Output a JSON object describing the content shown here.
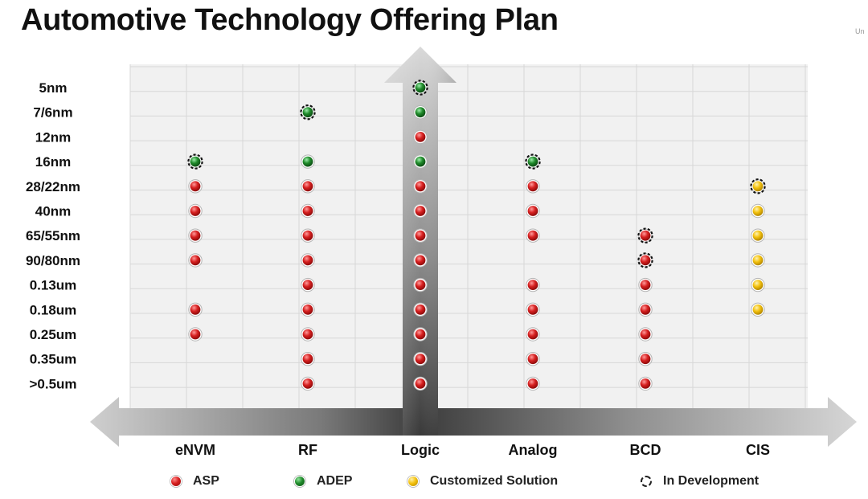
{
  "title": "Automotive Technology Offering Plan",
  "corner_text": "Un",
  "colors": {
    "ASP": "#d61f1f",
    "ADEP": "#1f8a2a",
    "Customized Solution": "#f3c10e",
    "grid": "#d7d7d7",
    "panel": "#f1f1f1"
  },
  "legend": [
    {
      "key": "ASP",
      "label": "ASP",
      "style": "solid-red"
    },
    {
      "key": "ADEP",
      "label": "ADEP",
      "style": "solid-green"
    },
    {
      "key": "Customized Solution",
      "label": "Customized Solution",
      "style": "solid-yellow"
    },
    {
      "key": "In Development",
      "label": "In Development",
      "style": "dashed-ring"
    }
  ],
  "chart_data": {
    "type": "scatter",
    "title": "Automotive Technology Offering Plan",
    "categories": [
      "eNVM",
      "RF",
      "Logic",
      "Analog",
      "BCD",
      "CIS"
    ],
    "nodes": [
      "5nm",
      "7/6nm",
      "12nm",
      "16nm",
      "28/22nm",
      "40nm",
      "65/55nm",
      "90/80nm",
      "0.13um",
      "0.18um",
      "0.25um",
      "0.35um",
      ">0.5um"
    ],
    "grid": true,
    "legend_position": "bottom",
    "points": [
      {
        "category": "eNVM",
        "node": "16nm",
        "type": "ADEP",
        "in_development": true
      },
      {
        "category": "eNVM",
        "node": "28/22nm",
        "type": "ASP",
        "in_development": false
      },
      {
        "category": "eNVM",
        "node": "40nm",
        "type": "ASP",
        "in_development": false
      },
      {
        "category": "eNVM",
        "node": "65/55nm",
        "type": "ASP",
        "in_development": false
      },
      {
        "category": "eNVM",
        "node": "90/80nm",
        "type": "ASP",
        "in_development": false
      },
      {
        "category": "eNVM",
        "node": "0.18um",
        "type": "ASP",
        "in_development": false
      },
      {
        "category": "eNVM",
        "node": "0.25um",
        "type": "ASP",
        "in_development": false
      },
      {
        "category": "RF",
        "node": "7/6nm",
        "type": "ADEP",
        "in_development": true
      },
      {
        "category": "RF",
        "node": "16nm",
        "type": "ADEP",
        "in_development": false
      },
      {
        "category": "RF",
        "node": "28/22nm",
        "type": "ASP",
        "in_development": false
      },
      {
        "category": "RF",
        "node": "40nm",
        "type": "ASP",
        "in_development": false
      },
      {
        "category": "RF",
        "node": "65/55nm",
        "type": "ASP",
        "in_development": false
      },
      {
        "category": "RF",
        "node": "90/80nm",
        "type": "ASP",
        "in_development": false
      },
      {
        "category": "RF",
        "node": "0.13um",
        "type": "ASP",
        "in_development": false
      },
      {
        "category": "RF",
        "node": "0.18um",
        "type": "ASP",
        "in_development": false
      },
      {
        "category": "RF",
        "node": "0.25um",
        "type": "ASP",
        "in_development": false
      },
      {
        "category": "RF",
        "node": "0.35um",
        "type": "ASP",
        "in_development": false
      },
      {
        "category": "RF",
        "node": ">0.5um",
        "type": "ASP",
        "in_development": false
      },
      {
        "category": "Logic",
        "node": "5nm",
        "type": "ADEP",
        "in_development": true
      },
      {
        "category": "Logic",
        "node": "7/6nm",
        "type": "ADEP",
        "in_development": false
      },
      {
        "category": "Logic",
        "node": "12nm",
        "type": "ASP",
        "in_development": false
      },
      {
        "category": "Logic",
        "node": "16nm",
        "type": "ADEP",
        "in_development": false
      },
      {
        "category": "Logic",
        "node": "28/22nm",
        "type": "ASP",
        "in_development": false
      },
      {
        "category": "Logic",
        "node": "40nm",
        "type": "ASP",
        "in_development": false
      },
      {
        "category": "Logic",
        "node": "65/55nm",
        "type": "ASP",
        "in_development": false
      },
      {
        "category": "Logic",
        "node": "90/80nm",
        "type": "ASP",
        "in_development": false
      },
      {
        "category": "Logic",
        "node": "0.13um",
        "type": "ASP",
        "in_development": false
      },
      {
        "category": "Logic",
        "node": "0.18um",
        "type": "ASP",
        "in_development": false
      },
      {
        "category": "Logic",
        "node": "0.25um",
        "type": "ASP",
        "in_development": false
      },
      {
        "category": "Logic",
        "node": "0.35um",
        "type": "ASP",
        "in_development": false
      },
      {
        "category": "Logic",
        "node": ">0.5um",
        "type": "ASP",
        "in_development": false
      },
      {
        "category": "Analog",
        "node": "16nm",
        "type": "ADEP",
        "in_development": true
      },
      {
        "category": "Analog",
        "node": "28/22nm",
        "type": "ASP",
        "in_development": false
      },
      {
        "category": "Analog",
        "node": "40nm",
        "type": "ASP",
        "in_development": false
      },
      {
        "category": "Analog",
        "node": "65/55nm",
        "type": "ASP",
        "in_development": false
      },
      {
        "category": "Analog",
        "node": "0.13um",
        "type": "ASP",
        "in_development": false
      },
      {
        "category": "Analog",
        "node": "0.18um",
        "type": "ASP",
        "in_development": false
      },
      {
        "category": "Analog",
        "node": "0.25um",
        "type": "ASP",
        "in_development": false
      },
      {
        "category": "Analog",
        "node": "0.35um",
        "type": "ASP",
        "in_development": false
      },
      {
        "category": "Analog",
        "node": ">0.5um",
        "type": "ASP",
        "in_development": false
      },
      {
        "category": "BCD",
        "node": "65/55nm",
        "type": "ASP",
        "in_development": true
      },
      {
        "category": "BCD",
        "node": "90/80nm",
        "type": "ASP",
        "in_development": true
      },
      {
        "category": "BCD",
        "node": "0.13um",
        "type": "ASP",
        "in_development": false
      },
      {
        "category": "BCD",
        "node": "0.18um",
        "type": "ASP",
        "in_development": false
      },
      {
        "category": "BCD",
        "node": "0.25um",
        "type": "ASP",
        "in_development": false
      },
      {
        "category": "BCD",
        "node": "0.35um",
        "type": "ASP",
        "in_development": false
      },
      {
        "category": "BCD",
        "node": ">0.5um",
        "type": "ASP",
        "in_development": false
      },
      {
        "category": "CIS",
        "node": "28/22nm",
        "type": "Customized Solution",
        "in_development": true
      },
      {
        "category": "CIS",
        "node": "40nm",
        "type": "Customized Solution",
        "in_development": false
      },
      {
        "category": "CIS",
        "node": "65/55nm",
        "type": "Customized Solution",
        "in_development": false
      },
      {
        "category": "CIS",
        "node": "90/80nm",
        "type": "Customized Solution",
        "in_development": false
      },
      {
        "category": "CIS",
        "node": "0.13um",
        "type": "Customized Solution",
        "in_development": false
      },
      {
        "category": "CIS",
        "node": "0.18um",
        "type": "Customized Solution",
        "in_development": false
      }
    ]
  }
}
